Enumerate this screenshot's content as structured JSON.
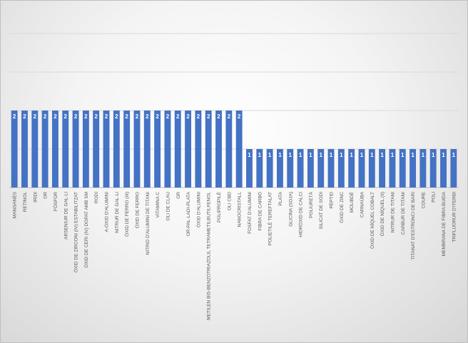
{
  "chart_data": {
    "type": "bar",
    "title": "",
    "xlabel": "",
    "ylabel": "",
    "ylim": [
      0,
      4
    ],
    "grid": true,
    "legend": "none",
    "bar_color": "#4472c4",
    "label_color": "#ffffff",
    "categories": [
      "MANGANÈS",
      "RETINOL",
      "IRIDI",
      "OR",
      "FÒSFOR",
      "ARSENIUR DE GAL·LI",
      "ÒXID DE ZIRCONI (IV) ESTABILITZAT",
      "ÒXID DE CERI (IV) DOPAT AMB SM",
      "RODI",
      "A-ÒXID D'ALUMINI",
      "NITRUR DE GAL·LI",
      "ÒXID DE FERRO (III)",
      "ÒXID DE FERRO",
      "NITRID D'ALUMINI DE TITANI",
      "VITAMINA C",
      "OLI DE CLAU",
      "OR",
      "OR-PAL·LADI-PLATA",
      "ÒXID D'ALUMINI",
      "METILEN BIS-BENZOTRIAZOLIL TETRAMETILBUTILFENOL",
      "POLIPROPILÈ",
      "OLI CBD",
      "NANOCRISTALL",
      "FOSFAT D'ALUMINI",
      "FIBRA DE CARBÒ",
      "POLIETILÈ TEREFTALAT",
      "PLATA",
      "GLICINA (SOJA)",
      "HIDRÒXID DE CALCI",
      "POLIURETÀ",
      "SILICAT DE SODI",
      "PÈPTID",
      "ÒXID DE ZINC",
      "MOLIBDÈ",
      "CARNAÚBA",
      "ÒXID DE NÍQUEL COBALT",
      "ÒXID DE NÍQUEL (II)",
      "NITRUR DE TITANI",
      "CARBUR DE TITANI",
      "TITANAT D'ESTRONCI DE BARI",
      "COURE",
      "POLI",
      "MEMBRANA DE FIBRA BUIDA",
      "TRIFLUORUR D'ITERBI"
    ],
    "values": [
      2,
      2,
      2,
      2,
      2,
      2,
      2,
      2,
      2,
      2,
      2,
      2,
      2,
      2,
      2,
      2,
      2,
      2,
      2,
      2,
      2,
      2,
      2,
      1,
      1,
      1,
      1,
      1,
      1,
      1,
      1,
      1,
      1,
      1,
      1,
      1,
      1,
      1,
      1,
      1,
      1,
      1,
      1,
      1
    ]
  }
}
